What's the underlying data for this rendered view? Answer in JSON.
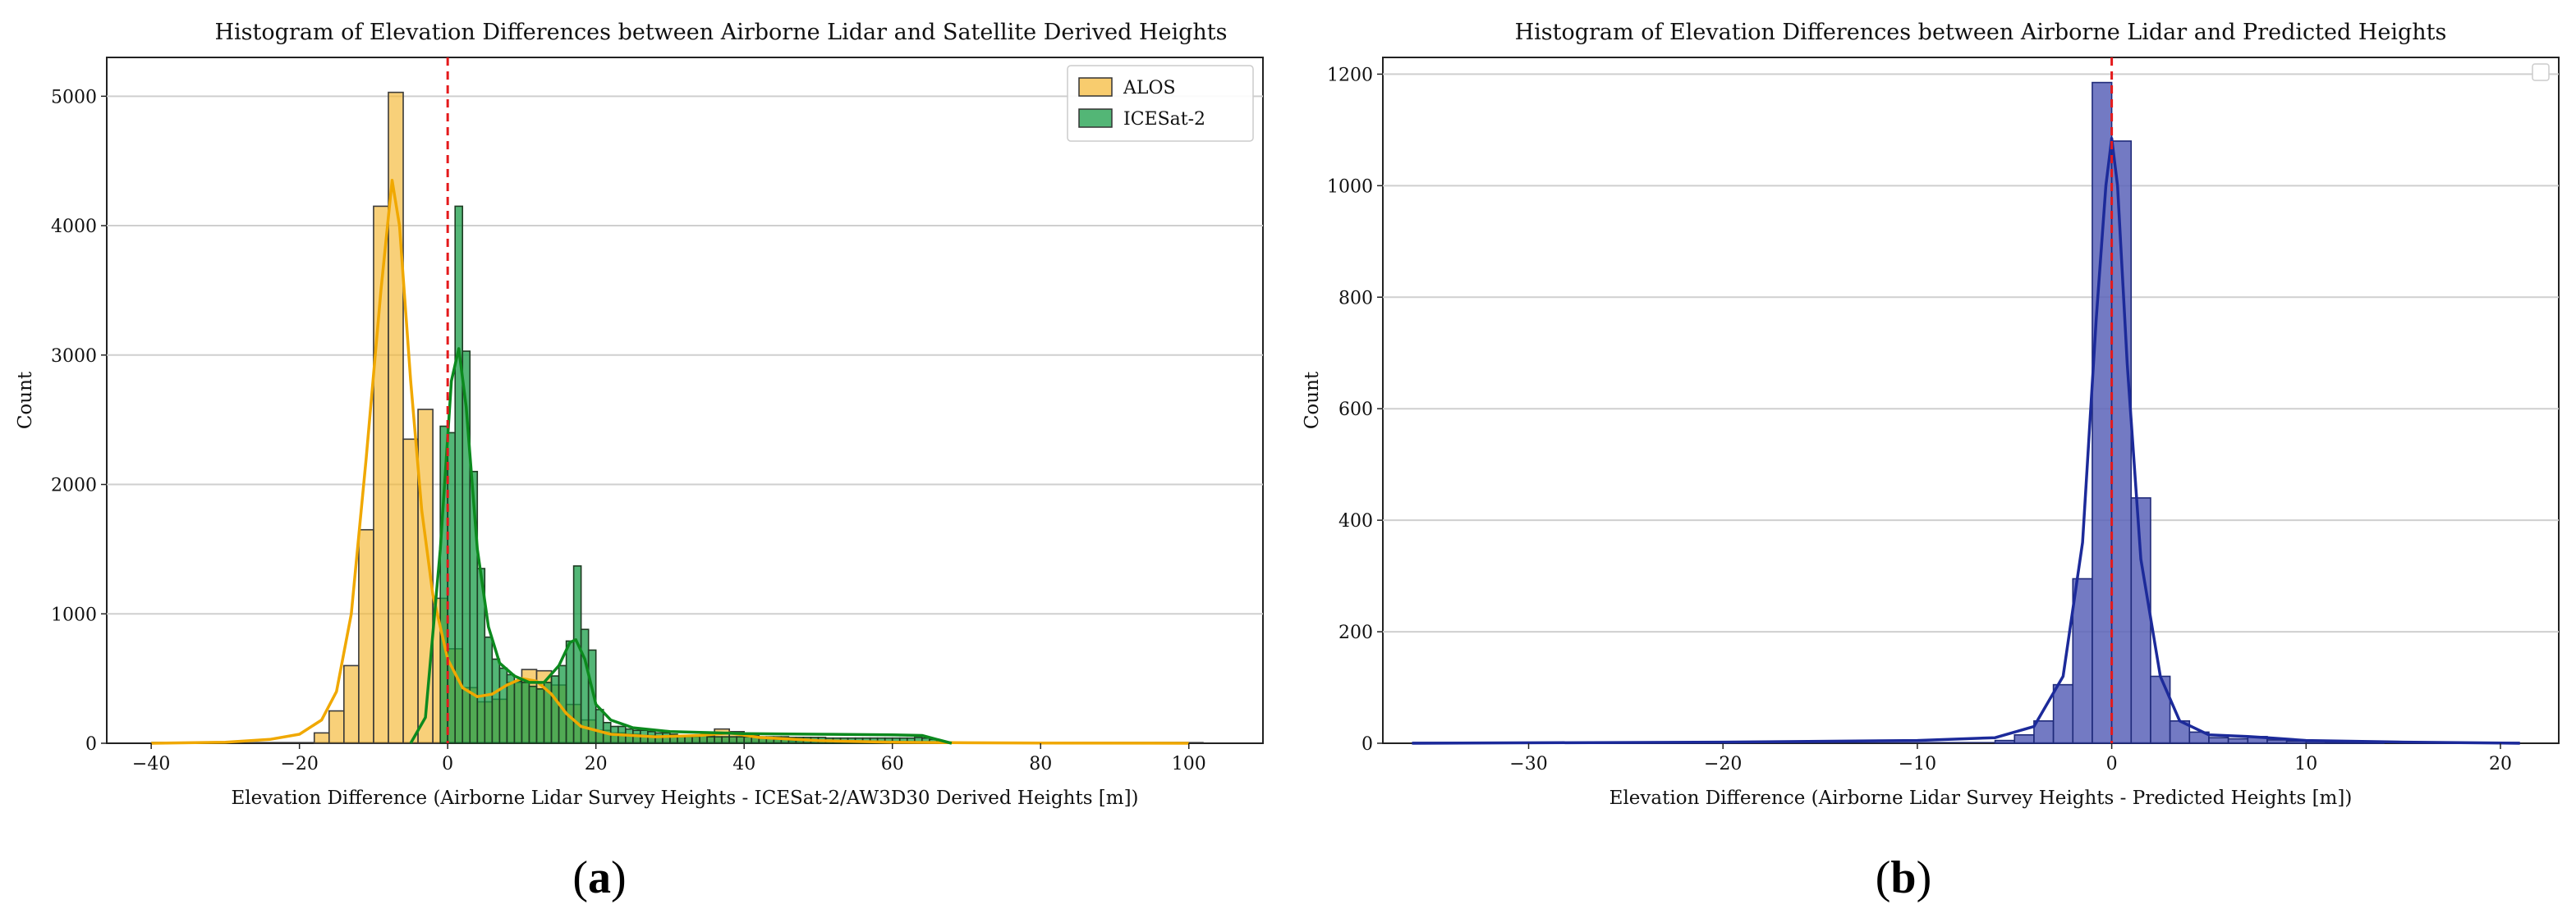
{
  "chart_data": [
    {
      "type": "bar",
      "panel": "(a)",
      "title": "Histogram of Elevation Differences between Airborne Lidar and Satellite Derived Heights",
      "xlabel": "Elevation Difference (Airborne Lidar Survey Heights - ICESat-2/AW3D30 Derived Heights [m])",
      "ylabel": "Count",
      "xlim": [
        -46,
        110
      ],
      "ylim": [
        0,
        5300
      ],
      "xticks": [
        -40,
        -20,
        0,
        20,
        40,
        60,
        80,
        100
      ],
      "yticks": [
        0,
        1000,
        2000,
        3000,
        4000,
        5000
      ],
      "grid": "horizontal",
      "legend_position": "top-right",
      "reference_line_x": 0,
      "colors": {
        "ALOS": "#f5b731",
        "ICESat-2": "#1a9e48",
        "reference_line": "#e41a1c"
      },
      "series": [
        {
          "name": "ALOS",
          "bin_width": 2,
          "bin_start": -40,
          "bin_end": 102,
          "bars": [
            [
              -18,
              80
            ],
            [
              -16,
              250
            ],
            [
              -14,
              600
            ],
            [
              -12,
              1650
            ],
            [
              -10,
              4150
            ],
            [
              -8,
              5030
            ],
            [
              -6,
              2350
            ],
            [
              -4,
              2580
            ],
            [
              -2,
              1120
            ],
            [
              0,
              730
            ],
            [
              2,
              430
            ],
            [
              4,
              320
            ],
            [
              6,
              340
            ],
            [
              8,
              470
            ],
            [
              10,
              570
            ],
            [
              12,
              560
            ],
            [
              14,
              450
            ],
            [
              16,
              300
            ],
            [
              18,
              180
            ],
            [
              20,
              100
            ],
            [
              22,
              80
            ],
            [
              24,
              70
            ],
            [
              26,
              60
            ],
            [
              28,
              50
            ],
            [
              30,
              50
            ],
            [
              32,
              50
            ],
            [
              34,
              60
            ],
            [
              36,
              110
            ],
            [
              38,
              90
            ],
            [
              40,
              60
            ],
            [
              42,
              40
            ],
            [
              44,
              30
            ],
            [
              46,
              20
            ]
          ],
          "kde": [
            [
              -40,
              0
            ],
            [
              -30,
              8
            ],
            [
              -24,
              30
            ],
            [
              -20,
              70
            ],
            [
              -17,
              180
            ],
            [
              -15,
              400
            ],
            [
              -13,
              1000
            ],
            [
              -11,
              2200
            ],
            [
              -9,
              3500
            ],
            [
              -7.5,
              4350
            ],
            [
              -6.5,
              4000
            ],
            [
              -5,
              2800
            ],
            [
              -3.5,
              1800
            ],
            [
              -2,
              1150
            ],
            [
              0,
              650
            ],
            [
              2,
              430
            ],
            [
              4,
              360
            ],
            [
              6,
              380
            ],
            [
              8,
              450
            ],
            [
              10,
              500
            ],
            [
              12,
              480
            ],
            [
              14,
              380
            ],
            [
              16,
              230
            ],
            [
              18,
              130
            ],
            [
              22,
              70
            ],
            [
              28,
              50
            ],
            [
              34,
              60
            ],
            [
              38,
              80
            ],
            [
              42,
              45
            ],
            [
              50,
              20
            ],
            [
              60,
              8
            ],
            [
              70,
              4
            ],
            [
              80,
              2
            ],
            [
              100,
              0
            ]
          ]
        },
        {
          "name": "ICESat-2",
          "bin_width": 1,
          "bin_start": -1,
          "bin_end": 69,
          "bars": [
            [
              -1,
              2450
            ],
            [
              0,
              2400
            ],
            [
              1,
              4150
            ],
            [
              2,
              3030
            ],
            [
              3,
              2100
            ],
            [
              4,
              1350
            ],
            [
              5,
              820
            ],
            [
              6,
              650
            ],
            [
              7,
              580
            ],
            [
              8,
              530
            ],
            [
              9,
              480
            ],
            [
              10,
              470
            ],
            [
              11,
              440
            ],
            [
              12,
              420
            ],
            [
              13,
              470
            ],
            [
              14,
              520
            ],
            [
              15,
              600
            ],
            [
              16,
              790
            ],
            [
              17,
              1370
            ],
            [
              18,
              880
            ],
            [
              19,
              720
            ],
            [
              20,
              260
            ],
            [
              21,
              160
            ],
            [
              22,
              130
            ],
            [
              23,
              130
            ],
            [
              24,
              110
            ],
            [
              25,
              100
            ],
            [
              26,
              100
            ],
            [
              27,
              90
            ],
            [
              28,
              80
            ],
            [
              29,
              80
            ],
            [
              30,
              70
            ],
            [
              31,
              60
            ],
            [
              32,
              60
            ],
            [
              33,
              60
            ],
            [
              34,
              60
            ],
            [
              35,
              50
            ],
            [
              36,
              50
            ],
            [
              37,
              50
            ],
            [
              38,
              50
            ],
            [
              39,
              50
            ],
            [
              40,
              50
            ],
            [
              41,
              50
            ],
            [
              42,
              50
            ],
            [
              43,
              50
            ],
            [
              44,
              50
            ],
            [
              45,
              50
            ],
            [
              46,
              45
            ],
            [
              47,
              45
            ],
            [
              48,
              45
            ],
            [
              49,
              45
            ],
            [
              50,
              45
            ],
            [
              51,
              40
            ],
            [
              52,
              40
            ],
            [
              53,
              40
            ],
            [
              54,
              40
            ],
            [
              55,
              40
            ],
            [
              56,
              40
            ],
            [
              57,
              40
            ],
            [
              58,
              40
            ],
            [
              59,
              40
            ],
            [
              60,
              40
            ],
            [
              61,
              40
            ],
            [
              62,
              40
            ],
            [
              63,
              45
            ],
            [
              64,
              40
            ],
            [
              65,
              30
            ],
            [
              66,
              20
            ],
            [
              67,
              10
            ],
            [
              68,
              5
            ]
          ],
          "kde": [
            [
              -5,
              0
            ],
            [
              -3,
              200
            ],
            [
              -1,
              1500
            ],
            [
              0.5,
              2800
            ],
            [
              1.5,
              3050
            ],
            [
              2.5,
              2600
            ],
            [
              4,
              1500
            ],
            [
              5.5,
              900
            ],
            [
              7,
              620
            ],
            [
              9,
              520
            ],
            [
              11,
              470
            ],
            [
              13,
              470
            ],
            [
              15,
              600
            ],
            [
              16.5,
              780
            ],
            [
              17.3,
              800
            ],
            [
              18.5,
              650
            ],
            [
              20,
              300
            ],
            [
              22,
              180
            ],
            [
              25,
              120
            ],
            [
              30,
              90
            ],
            [
              40,
              75
            ],
            [
              50,
              70
            ],
            [
              60,
              65
            ],
            [
              64,
              60
            ],
            [
              66,
              30
            ],
            [
              68,
              0
            ]
          ]
        }
      ]
    },
    {
      "type": "bar",
      "panel": "(b)",
      "title": "Histogram of Elevation Differences between Airborne Lidar and Predicted Heights",
      "xlabel": "Elevation Difference (Airborne Lidar Survey Heights - Predicted Heights [m])",
      "ylabel": "Count",
      "xlim": [
        -37.5,
        23
      ],
      "ylim": [
        0,
        1230
      ],
      "xticks": [
        -30,
        -20,
        -10,
        0,
        10,
        20
      ],
      "yticks": [
        0,
        200,
        400,
        600,
        800,
        1000,
        1200
      ],
      "grid": "horizontal",
      "legend_position": "top-right",
      "reference_line_x": 0,
      "colors": {
        "bars": "#5b63b8",
        "edge": "#1f2a7a",
        "kde": "#1c2a9a",
        "reference_line": "#e41a1c"
      },
      "series": [
        {
          "bin_width": 1,
          "bin_start": -36,
          "bin_end": 21,
          "bars": [
            [
              -6,
              5
            ],
            [
              -5,
              15
            ],
            [
              -4,
              40
            ],
            [
              -3,
              105
            ],
            [
              -2,
              295
            ],
            [
              -1,
              1185
            ],
            [
              0,
              1080
            ],
            [
              1,
              440
            ],
            [
              2,
              120
            ],
            [
              3,
              40
            ],
            [
              4,
              20
            ],
            [
              5,
              10
            ],
            [
              6,
              8
            ],
            [
              7,
              12
            ],
            [
              8,
              6
            ],
            [
              9,
              4
            ],
            [
              10,
              3
            ],
            [
              11,
              2
            ],
            [
              12,
              2
            ],
            [
              13,
              1
            ]
          ],
          "kde": [
            [
              -36,
              0
            ],
            [
              -20,
              2
            ],
            [
              -10,
              5
            ],
            [
              -6,
              10
            ],
            [
              -4,
              30
            ],
            [
              -2.5,
              120
            ],
            [
              -1.5,
              360
            ],
            [
              -0.8,
              760
            ],
            [
              -0.3,
              1000
            ],
            [
              0,
              1085
            ],
            [
              0.3,
              1000
            ],
            [
              0.8,
              680
            ],
            [
              1.5,
              330
            ],
            [
              2.5,
              120
            ],
            [
              3.5,
              40
            ],
            [
              5,
              15
            ],
            [
              7,
              12
            ],
            [
              8,
              10
            ],
            [
              10,
              5
            ],
            [
              15,
              2
            ],
            [
              21,
              0
            ]
          ]
        }
      ]
    }
  ],
  "panel_labels": [
    "(a)",
    "(b)"
  ]
}
